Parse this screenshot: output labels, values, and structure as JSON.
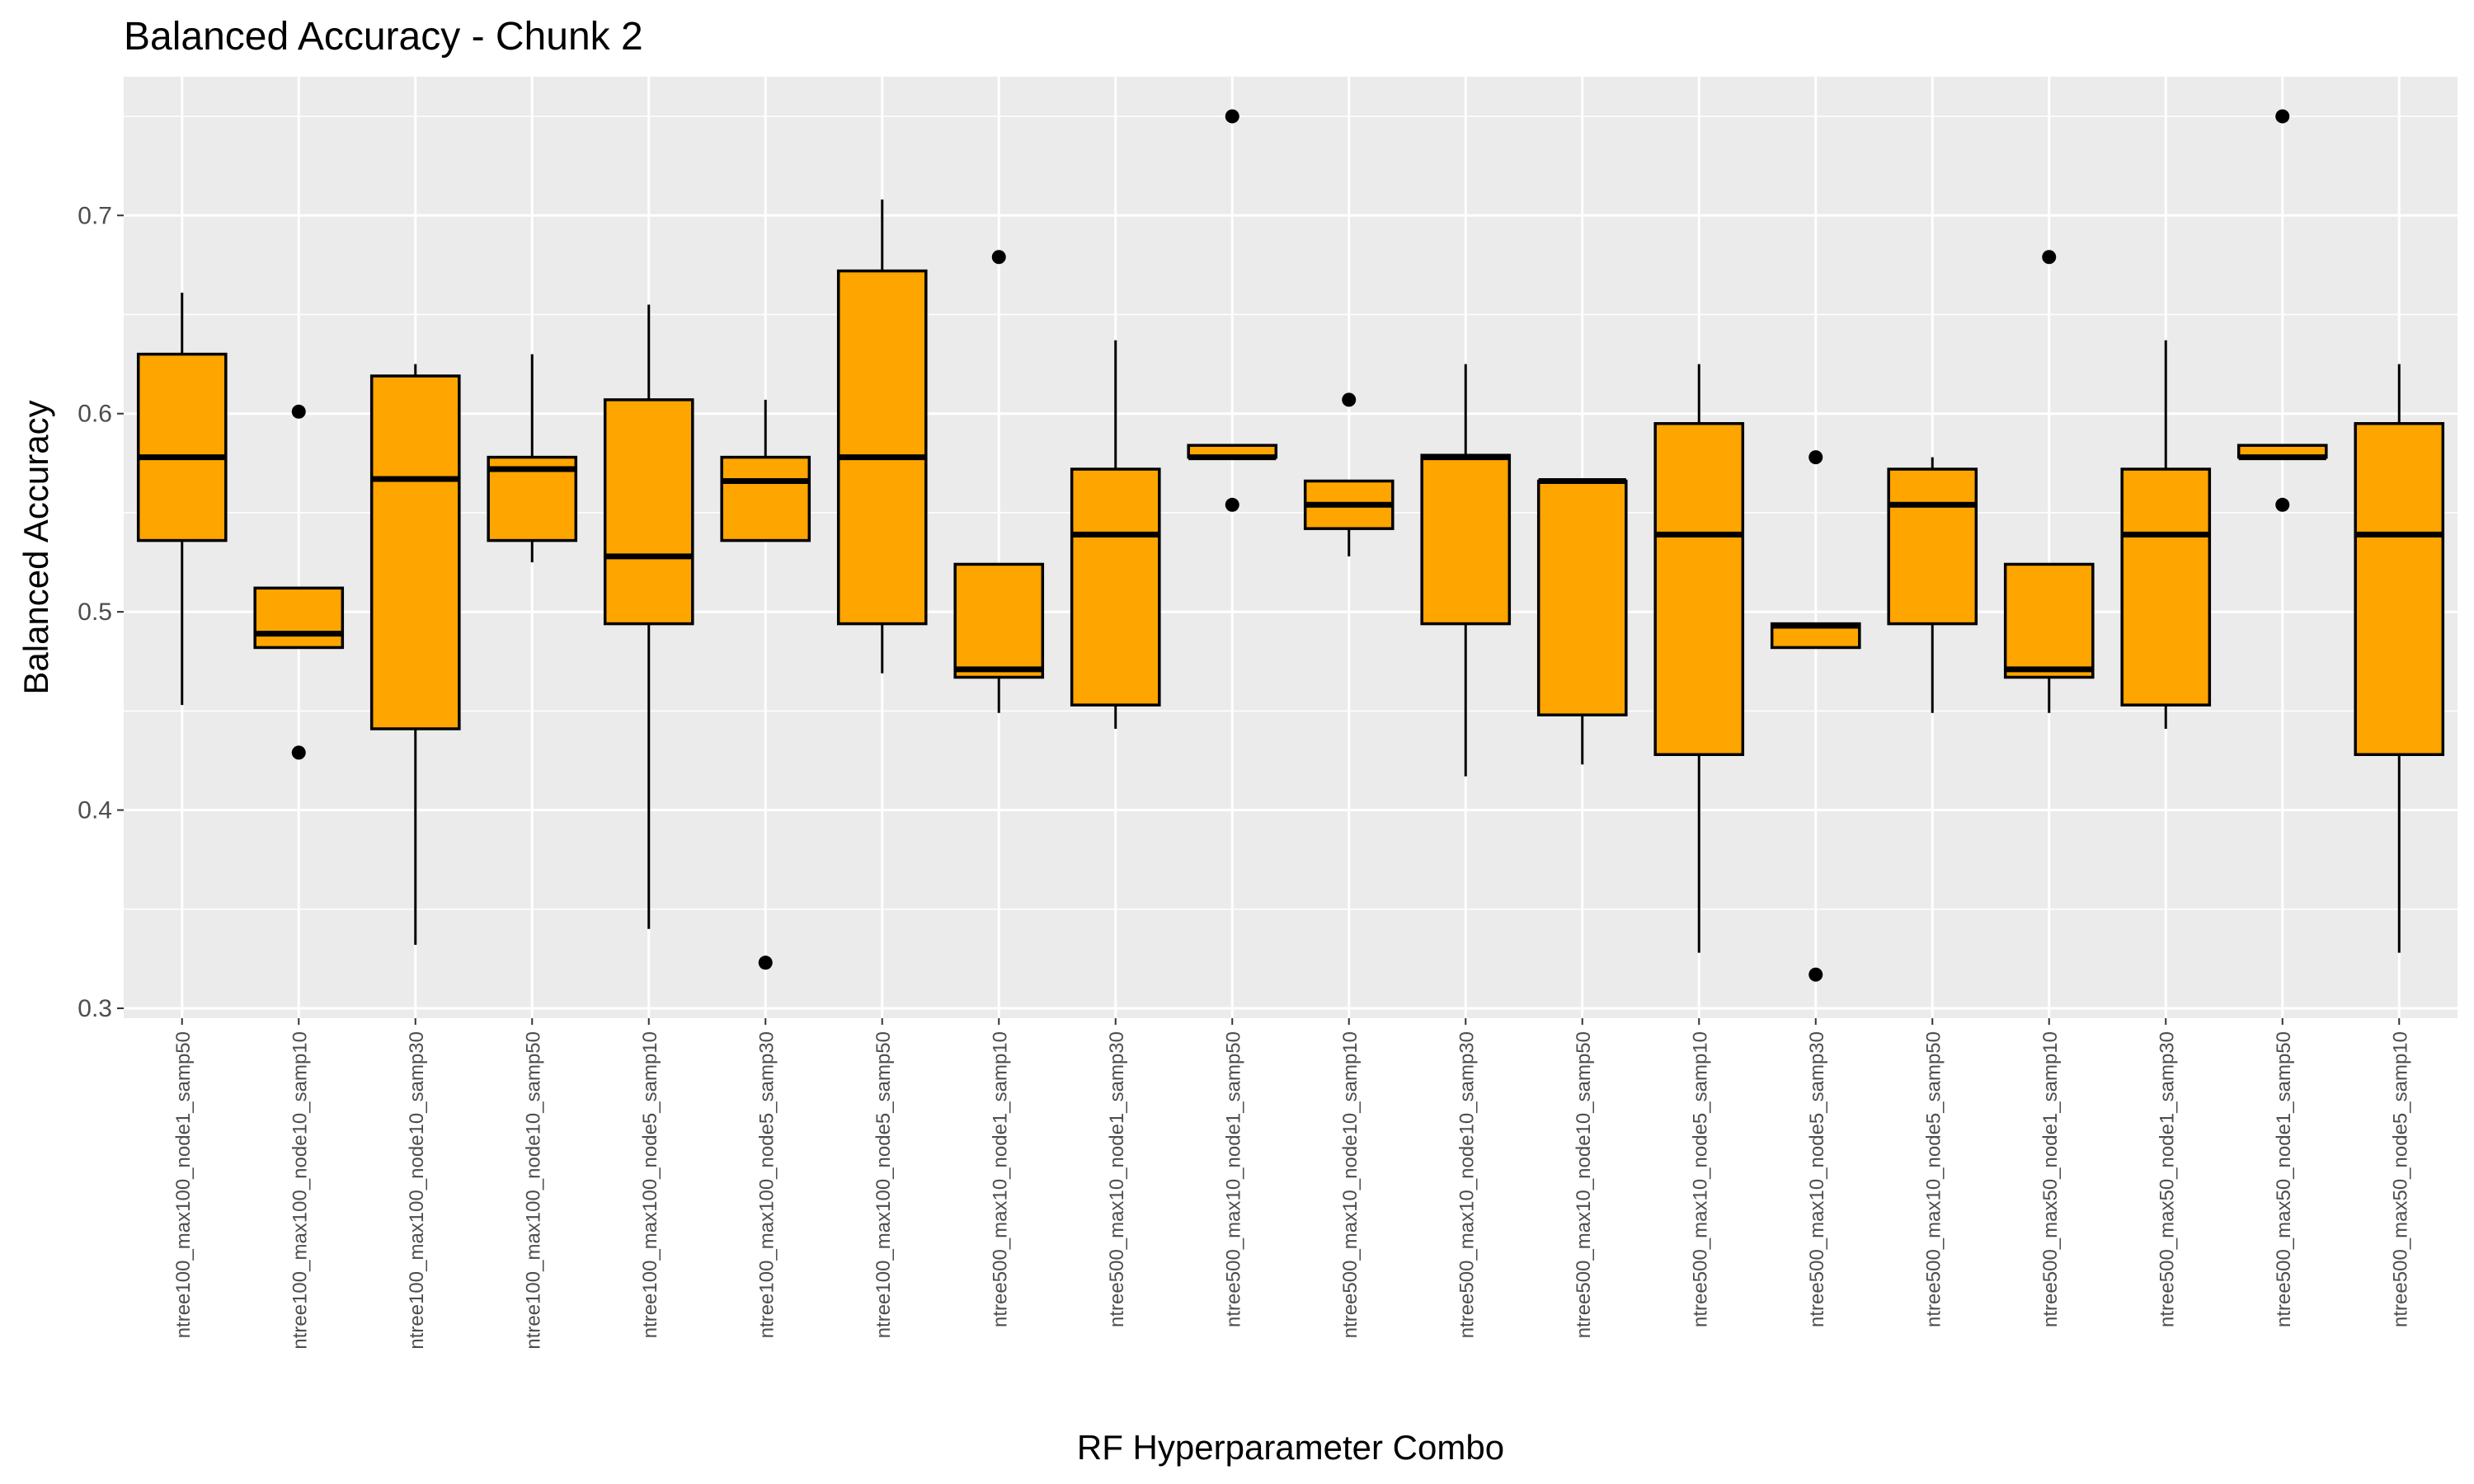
{
  "chart_data": {
    "type": "boxplot",
    "title": "Balanced Accuracy - Chunk 2",
    "xlabel": "RF Hyperparameter Combo",
    "ylabel": "Balanced Accuracy",
    "ylim": [
      0.295,
      0.77
    ],
    "yticks": [
      0.3,
      0.4,
      0.5,
      0.6,
      0.7
    ],
    "ytick_labels": [
      "0.3",
      "0.4",
      "0.5",
      "0.6",
      "0.7"
    ],
    "grid": true,
    "legend": "none",
    "colors": {
      "box_fill": "#FFA500",
      "box_stroke": "#000000",
      "panel_bg": "#EBEBEB",
      "grid": "#FFFFFF"
    },
    "categories": [
      "ntree100_max100_node1_samp50",
      "ntree100_max100_node10_samp10",
      "ntree100_max100_node10_samp30",
      "ntree100_max100_node10_samp50",
      "ntree100_max100_node5_samp10",
      "ntree100_max100_node5_samp30",
      "ntree100_max100_node5_samp50",
      "ntree500_max10_node1_samp10",
      "ntree500_max10_node1_samp30",
      "ntree500_max10_node1_samp50",
      "ntree500_max10_node10_samp10",
      "ntree500_max10_node10_samp30",
      "ntree500_max10_node10_samp50",
      "ntree500_max10_node5_samp10",
      "ntree500_max10_node5_samp30",
      "ntree500_max10_node5_samp50",
      "ntree500_max50_node1_samp10",
      "ntree500_max50_node1_samp30",
      "ntree500_max50_node1_samp50",
      "ntree500_max50_node5_samp10"
    ],
    "boxes": [
      {
        "low": 0.453,
        "q1": 0.536,
        "median": 0.578,
        "q3": 0.63,
        "high": 0.661,
        "outliers": []
      },
      {
        "low": 0.482,
        "q1": 0.482,
        "median": 0.489,
        "q3": 0.512,
        "high": 0.512,
        "outliers": [
          0.601,
          0.429
        ]
      },
      {
        "low": 0.332,
        "q1": 0.441,
        "median": 0.567,
        "q3": 0.619,
        "high": 0.625,
        "outliers": []
      },
      {
        "low": 0.525,
        "q1": 0.536,
        "median": 0.572,
        "q3": 0.578,
        "high": 0.63,
        "outliers": []
      },
      {
        "low": 0.34,
        "q1": 0.494,
        "median": 0.528,
        "q3": 0.607,
        "high": 0.655,
        "outliers": []
      },
      {
        "low": 0.536,
        "q1": 0.536,
        "median": 0.566,
        "q3": 0.578,
        "high": 0.607,
        "outliers": [
          0.323
        ]
      },
      {
        "low": 0.469,
        "q1": 0.494,
        "median": 0.578,
        "q3": 0.672,
        "high": 0.708,
        "outliers": []
      },
      {
        "low": 0.449,
        "q1": 0.467,
        "median": 0.471,
        "q3": 0.524,
        "high": 0.524,
        "outliers": [
          0.679
        ]
      },
      {
        "low": 0.441,
        "q1": 0.453,
        "median": 0.539,
        "q3": 0.572,
        "high": 0.637,
        "outliers": []
      },
      {
        "low": 0.578,
        "q1": 0.578,
        "median": 0.578,
        "q3": 0.584,
        "high": 0.584,
        "outliers": [
          0.75,
          0.554
        ]
      },
      {
        "low": 0.528,
        "q1": 0.542,
        "median": 0.554,
        "q3": 0.566,
        "high": 0.566,
        "outliers": [
          0.607
        ]
      },
      {
        "low": 0.417,
        "q1": 0.494,
        "median": 0.578,
        "q3": 0.579,
        "high": 0.625,
        "outliers": []
      },
      {
        "low": 0.423,
        "q1": 0.448,
        "median": 0.566,
        "q3": 0.566,
        "high": 0.566,
        "outliers": []
      },
      {
        "low": 0.328,
        "q1": 0.428,
        "median": 0.539,
        "q3": 0.595,
        "high": 0.625,
        "outliers": []
      },
      {
        "low": 0.482,
        "q1": 0.482,
        "median": 0.493,
        "q3": 0.494,
        "high": 0.494,
        "outliers": [
          0.578,
          0.317
        ]
      },
      {
        "low": 0.449,
        "q1": 0.494,
        "median": 0.554,
        "q3": 0.572,
        "high": 0.578,
        "outliers": []
      },
      {
        "low": 0.449,
        "q1": 0.467,
        "median": 0.471,
        "q3": 0.524,
        "high": 0.524,
        "outliers": [
          0.679
        ]
      },
      {
        "low": 0.441,
        "q1": 0.453,
        "median": 0.539,
        "q3": 0.572,
        "high": 0.637,
        "outliers": []
      },
      {
        "low": 0.578,
        "q1": 0.578,
        "median": 0.578,
        "q3": 0.584,
        "high": 0.584,
        "outliers": [
          0.75,
          0.554
        ]
      },
      {
        "low": 0.328,
        "q1": 0.428,
        "median": 0.539,
        "q3": 0.595,
        "high": 0.625,
        "outliers": []
      }
    ]
  }
}
